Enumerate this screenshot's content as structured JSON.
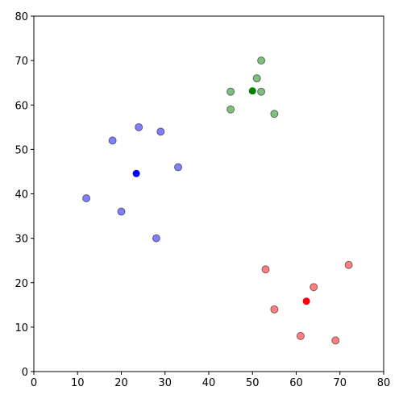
{
  "chart_data": {
    "type": "scatter",
    "xlim": [
      0,
      80
    ],
    "ylim": [
      0,
      80
    ],
    "xticks": [
      0,
      10,
      20,
      30,
      40,
      50,
      60,
      70,
      80
    ],
    "yticks": [
      0,
      10,
      20,
      30,
      40,
      50,
      60,
      70,
      80
    ],
    "grid": false,
    "series": [
      {
        "color": "#0000ff",
        "alpha": 0.5,
        "edgecolor": "#000000",
        "x": [
          12,
          18,
          24,
          29,
          33,
          20,
          28
        ],
        "values": [
          39,
          52,
          55,
          54,
          46,
          36,
          30
        ]
      },
      {
        "color": "#008000",
        "alpha": 0.5,
        "edgecolor": "#000000",
        "x": [
          45,
          45,
          51,
          52,
          52,
          55
        ],
        "values": [
          63,
          59,
          66,
          70,
          63,
          58
        ]
      },
      {
        "color": "#ff0000",
        "alpha": 0.5,
        "edgecolor": "#000000",
        "x": [
          53,
          55,
          61,
          64,
          69,
          72
        ],
        "values": [
          23,
          14,
          8,
          19,
          7,
          24
        ]
      },
      {
        "color": "#0000ff",
        "alpha": 1,
        "x": [
          23.43
        ],
        "values": [
          44.57
        ]
      },
      {
        "color": "#008000",
        "alpha": 1,
        "x": [
          50
        ],
        "values": [
          63.17
        ]
      },
      {
        "color": "#ff0000",
        "alpha": 1,
        "x": [
          62.33
        ],
        "values": [
          15.83
        ]
      }
    ]
  }
}
